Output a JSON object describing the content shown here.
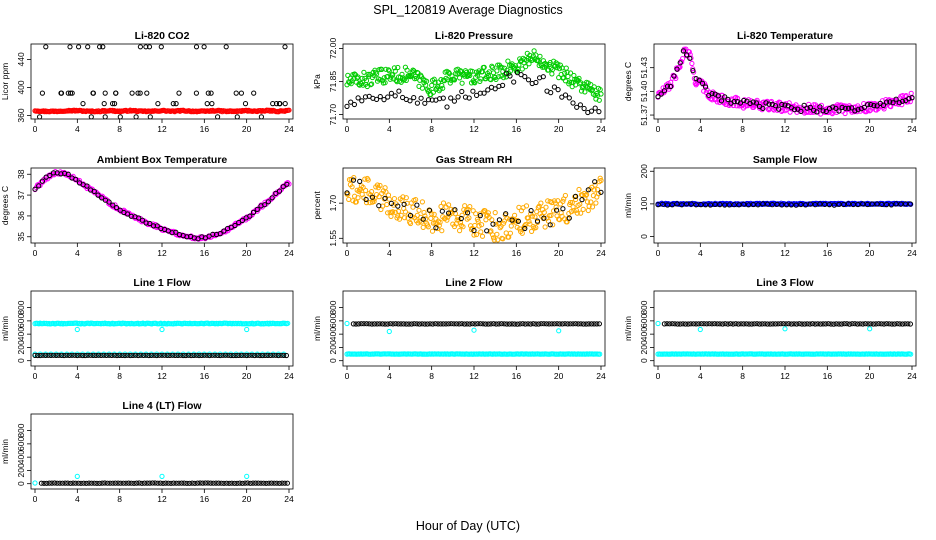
{
  "figure": {
    "title": "SPL_120819  Average Diagnostics",
    "xlabel": "Hour of Day (UTC)"
  },
  "chart_data": [
    {
      "id": "co2",
      "type": "scatter",
      "title": "Li-820 CO2",
      "ylabel": "Licor ppm",
      "xlim": [
        0,
        24
      ],
      "xticks": [
        0,
        4,
        8,
        12,
        16,
        20,
        24
      ],
      "ylim": [
        355,
        462
      ],
      "yticks": [
        360,
        400,
        440
      ],
      "series": [
        {
          "color": "#ff0000",
          "pattern": "smooth",
          "x": [
            0,
            1,
            2,
            3,
            4,
            5,
            6,
            7,
            8,
            9,
            10,
            11,
            12,
            13,
            14,
            15,
            16,
            17,
            18,
            19,
            20,
            21,
            22,
            23,
            24
          ],
          "y": [
            367,
            366,
            366,
            367,
            367,
            366,
            366,
            367,
            366,
            367,
            366,
            366,
            367,
            366,
            367,
            366,
            366,
            367,
            366,
            366,
            367,
            366,
            367,
            366,
            367
          ],
          "dense": 0.1
        },
        {
          "color": "#000000",
          "pattern": "scatter",
          "seed": 3,
          "n": 60,
          "levels": [
            358,
            377,
            392,
            458
          ]
        }
      ]
    },
    {
      "id": "pressure",
      "type": "scatter",
      "title": "Li-820 Pressure",
      "ylabel": "kPa",
      "xlim": [
        0,
        24
      ],
      "xticks": [
        0,
        4,
        8,
        12,
        16,
        20,
        24
      ],
      "ylim": [
        71.68,
        72.02
      ],
      "yticks": [
        71.7,
        71.85,
        72.0
      ],
      "series": [
        {
          "color": "#00cc00",
          "pattern": "band",
          "x": [
            0,
            2,
            4,
            6,
            8,
            10,
            12,
            14,
            16,
            17,
            18,
            20,
            22,
            24
          ],
          "y": [
            71.85,
            71.86,
            71.88,
            71.88,
            71.82,
            71.88,
            71.87,
            71.89,
            71.92,
            71.95,
            71.96,
            71.9,
            71.84,
            71.78
          ],
          "spread": 0.035,
          "dense": 0.08
        },
        {
          "color": "#000000",
          "pattern": "band",
          "x": [
            0,
            2,
            4,
            6,
            8,
            10,
            12,
            14,
            16,
            18,
            20,
            22,
            24
          ],
          "y": [
            71.75,
            71.78,
            71.8,
            71.77,
            71.74,
            71.76,
            71.8,
            71.84,
            71.88,
            71.86,
            71.8,
            71.75,
            71.7
          ],
          "spread": 0.03,
          "dense": 0.35
        }
      ]
    },
    {
      "id": "licor_temp",
      "type": "scatter",
      "title": "Li-820 Temperature",
      "ylabel": "degrees C",
      "xlim": [
        0,
        24
      ],
      "xticks": [
        0,
        4,
        8,
        12,
        16,
        20,
        24
      ],
      "ylim": [
        51.365,
        51.46
      ],
      "yticks": [
        51.37,
        51.4,
        51.43
      ],
      "series": [
        {
          "color": "#ff00ff",
          "pattern": "band",
          "x": [
            0,
            1,
            2,
            2.5,
            3,
            3.5,
            4,
            5,
            6,
            8,
            10,
            12,
            14,
            16,
            18,
            20,
            22,
            24
          ],
          "y": [
            51.395,
            51.405,
            51.43,
            51.452,
            51.445,
            51.415,
            51.41,
            51.395,
            51.39,
            51.385,
            51.382,
            51.38,
            51.378,
            51.377,
            51.378,
            51.38,
            51.385,
            51.393
          ],
          "spread": 0.006,
          "dense": 0.08
        },
        {
          "color": "#000000",
          "pattern": "band",
          "x": [
            0,
            1,
            2,
            2.5,
            3,
            3.5,
            4,
            5,
            6,
            8,
            10,
            12,
            14,
            16,
            18,
            20,
            22,
            24
          ],
          "y": [
            51.395,
            51.405,
            51.43,
            51.452,
            51.445,
            51.415,
            51.41,
            51.395,
            51.39,
            51.385,
            51.382,
            51.38,
            51.378,
            51.377,
            51.378,
            51.38,
            51.385,
            51.393
          ],
          "spread": 0.004,
          "dense": 0.3
        }
      ]
    },
    {
      "id": "box_temp",
      "type": "scatter",
      "title": "Ambient Box Temperature",
      "ylabel": "degrees C",
      "xlim": [
        0,
        24
      ],
      "xticks": [
        0,
        4,
        8,
        12,
        16,
        20,
        24
      ],
      "ylim": [
        34.7,
        38.3
      ],
      "yticks": [
        35.0,
        36.0,
        37.0,
        38.0
      ],
      "series": [
        {
          "color": "#ff00ff",
          "pattern": "band",
          "x": [
            0,
            1,
            2,
            3,
            4,
            6,
            8,
            10,
            12,
            14,
            15,
            16,
            17,
            18,
            20,
            22,
            24
          ],
          "y": [
            37.3,
            37.8,
            38.1,
            38.0,
            37.7,
            37.0,
            36.3,
            35.8,
            35.4,
            35.05,
            34.95,
            34.95,
            35.1,
            35.3,
            35.9,
            36.7,
            37.6
          ],
          "spread": 0.08,
          "dense": 0.12
        },
        {
          "color": "#000000",
          "pattern": "band",
          "x": [
            0,
            1,
            2,
            3,
            4,
            6,
            8,
            10,
            12,
            14,
            15,
            16,
            17,
            18,
            20,
            22,
            24
          ],
          "y": [
            37.3,
            37.8,
            38.1,
            38.0,
            37.7,
            37.0,
            36.3,
            35.8,
            35.4,
            35.05,
            34.95,
            34.95,
            35.1,
            35.3,
            35.9,
            36.7,
            37.6
          ],
          "spread": 0.05,
          "dense": 0.35
        }
      ]
    },
    {
      "id": "rh",
      "type": "scatter",
      "title": "Gas Stream RH",
      "ylabel": "percent",
      "xlim": [
        0,
        24
      ],
      "xticks": [
        0,
        4,
        8,
        12,
        16,
        20,
        24
      ],
      "ylim": [
        1.53,
        1.85
      ],
      "yticks": [
        1.55,
        1.7
      ],
      "series": [
        {
          "color": "#ffaa00",
          "pattern": "band",
          "x": [
            0,
            2,
            4,
            6,
            8,
            10,
            12,
            14,
            16,
            18,
            20,
            22,
            24
          ],
          "y": [
            1.76,
            1.75,
            1.7,
            1.67,
            1.63,
            1.65,
            1.62,
            1.6,
            1.62,
            1.64,
            1.66,
            1.7,
            1.77
          ],
          "spread": 0.06,
          "dense": 0.08
        },
        {
          "color": "#000000",
          "pattern": "band",
          "x": [
            0,
            2,
            4,
            6,
            8,
            10,
            12,
            14,
            16,
            18,
            20,
            22,
            24
          ],
          "y": [
            1.76,
            1.75,
            1.7,
            1.67,
            1.63,
            1.65,
            1.62,
            1.6,
            1.62,
            1.64,
            1.66,
            1.7,
            1.77
          ],
          "spread": 0.045,
          "dense": 0.6
        }
      ]
    },
    {
      "id": "sample_flow",
      "type": "scatter",
      "title": "Sample Flow",
      "ylabel": "ml/min",
      "xlim": [
        0,
        24
      ],
      "xticks": [
        0,
        4,
        8,
        12,
        16,
        20,
        24
      ],
      "ylim": [
        -20,
        210
      ],
      "yticks": [
        0,
        100,
        200
      ],
      "series": [
        {
          "color": "#0000ff",
          "pattern": "flat",
          "value": 100,
          "spread": 2,
          "dense": 0.12
        },
        {
          "color": "#000000",
          "pattern": "flat",
          "value": 98,
          "spread": 2,
          "dense": 0.45
        }
      ]
    },
    {
      "id": "line1",
      "type": "scatter",
      "title": "Line 1 Flow",
      "ylabel": "ml/min",
      "xlim": [
        0,
        24
      ],
      "xticks": [
        0,
        4,
        8,
        12,
        16,
        20,
        24
      ],
      "ylim": [
        -80,
        1050
      ],
      "yticks": [
        0,
        200,
        400,
        600,
        800
      ],
      "series": [
        {
          "color": "#00ffff",
          "pattern": "flat",
          "value": 560,
          "spread": 6,
          "dense": 0.12,
          "dips": [
            4,
            12,
            20
          ],
          "dip_value": 470
        },
        {
          "color": "#00ffff",
          "pattern": "flat",
          "value": 100,
          "spread": 0,
          "dense": 0.5
        },
        {
          "color": "#000000",
          "pattern": "flat",
          "value": 80,
          "spread": 2,
          "dense": 0.25
        }
      ]
    },
    {
      "id": "line2",
      "type": "scatter",
      "title": "Line 2 Flow",
      "ylabel": "ml/min",
      "xlim": [
        0,
        24
      ],
      "xticks": [
        0,
        4,
        8,
        12,
        16,
        20,
        24
      ],
      "ylim": [
        -80,
        1050
      ],
      "yticks": [
        0,
        200,
        400,
        600,
        800
      ],
      "series": [
        {
          "color": "#00ffff",
          "pattern": "flat",
          "value": 100,
          "spread": 3,
          "dense": 0.12
        },
        {
          "color": "#00ffff",
          "pattern": "points",
          "x": [
            0,
            4,
            12,
            20
          ],
          "y": [
            560,
            440,
            460,
            450
          ]
        },
        {
          "color": "#000000",
          "pattern": "flat",
          "value": 555,
          "spread": 3,
          "dense": 0.25,
          "xstart": 0.6
        }
      ]
    },
    {
      "id": "line3",
      "type": "scatter",
      "title": "Line 3 Flow",
      "ylabel": "ml/min",
      "xlim": [
        0,
        24
      ],
      "xticks": [
        0,
        4,
        8,
        12,
        16,
        20,
        24
      ],
      "ylim": [
        -80,
        1050
      ],
      "yticks": [
        0,
        200,
        400,
        600,
        800
      ],
      "series": [
        {
          "color": "#00ffff",
          "pattern": "flat",
          "value": 100,
          "spread": 3,
          "dense": 0.12
        },
        {
          "color": "#00ffff",
          "pattern": "points",
          "x": [
            0,
            4,
            12,
            20
          ],
          "y": [
            560,
            470,
            480,
            480
          ]
        },
        {
          "color": "#000000",
          "pattern": "flat",
          "value": 555,
          "spread": 3,
          "dense": 0.25,
          "xstart": 0.6
        }
      ]
    },
    {
      "id": "line4",
      "type": "scatter",
      "title": "Line 4 (LT) Flow",
      "ylabel": "ml/min",
      "xlim": [
        0,
        24
      ],
      "xticks": [
        0,
        4,
        8,
        12,
        16,
        20,
        24
      ],
      "ylim": [
        -80,
        1050
      ],
      "yticks": [
        0,
        200,
        400,
        600,
        800
      ],
      "series": [
        {
          "color": "#00ffff",
          "pattern": "points",
          "x": [
            0,
            4,
            12,
            20
          ],
          "y": [
            10,
            110,
            110,
            110
          ]
        },
        {
          "color": "#000000",
          "pattern": "flat",
          "value": 8,
          "spread": 2,
          "dense": 0.25,
          "xstart": 0.6
        }
      ]
    }
  ]
}
